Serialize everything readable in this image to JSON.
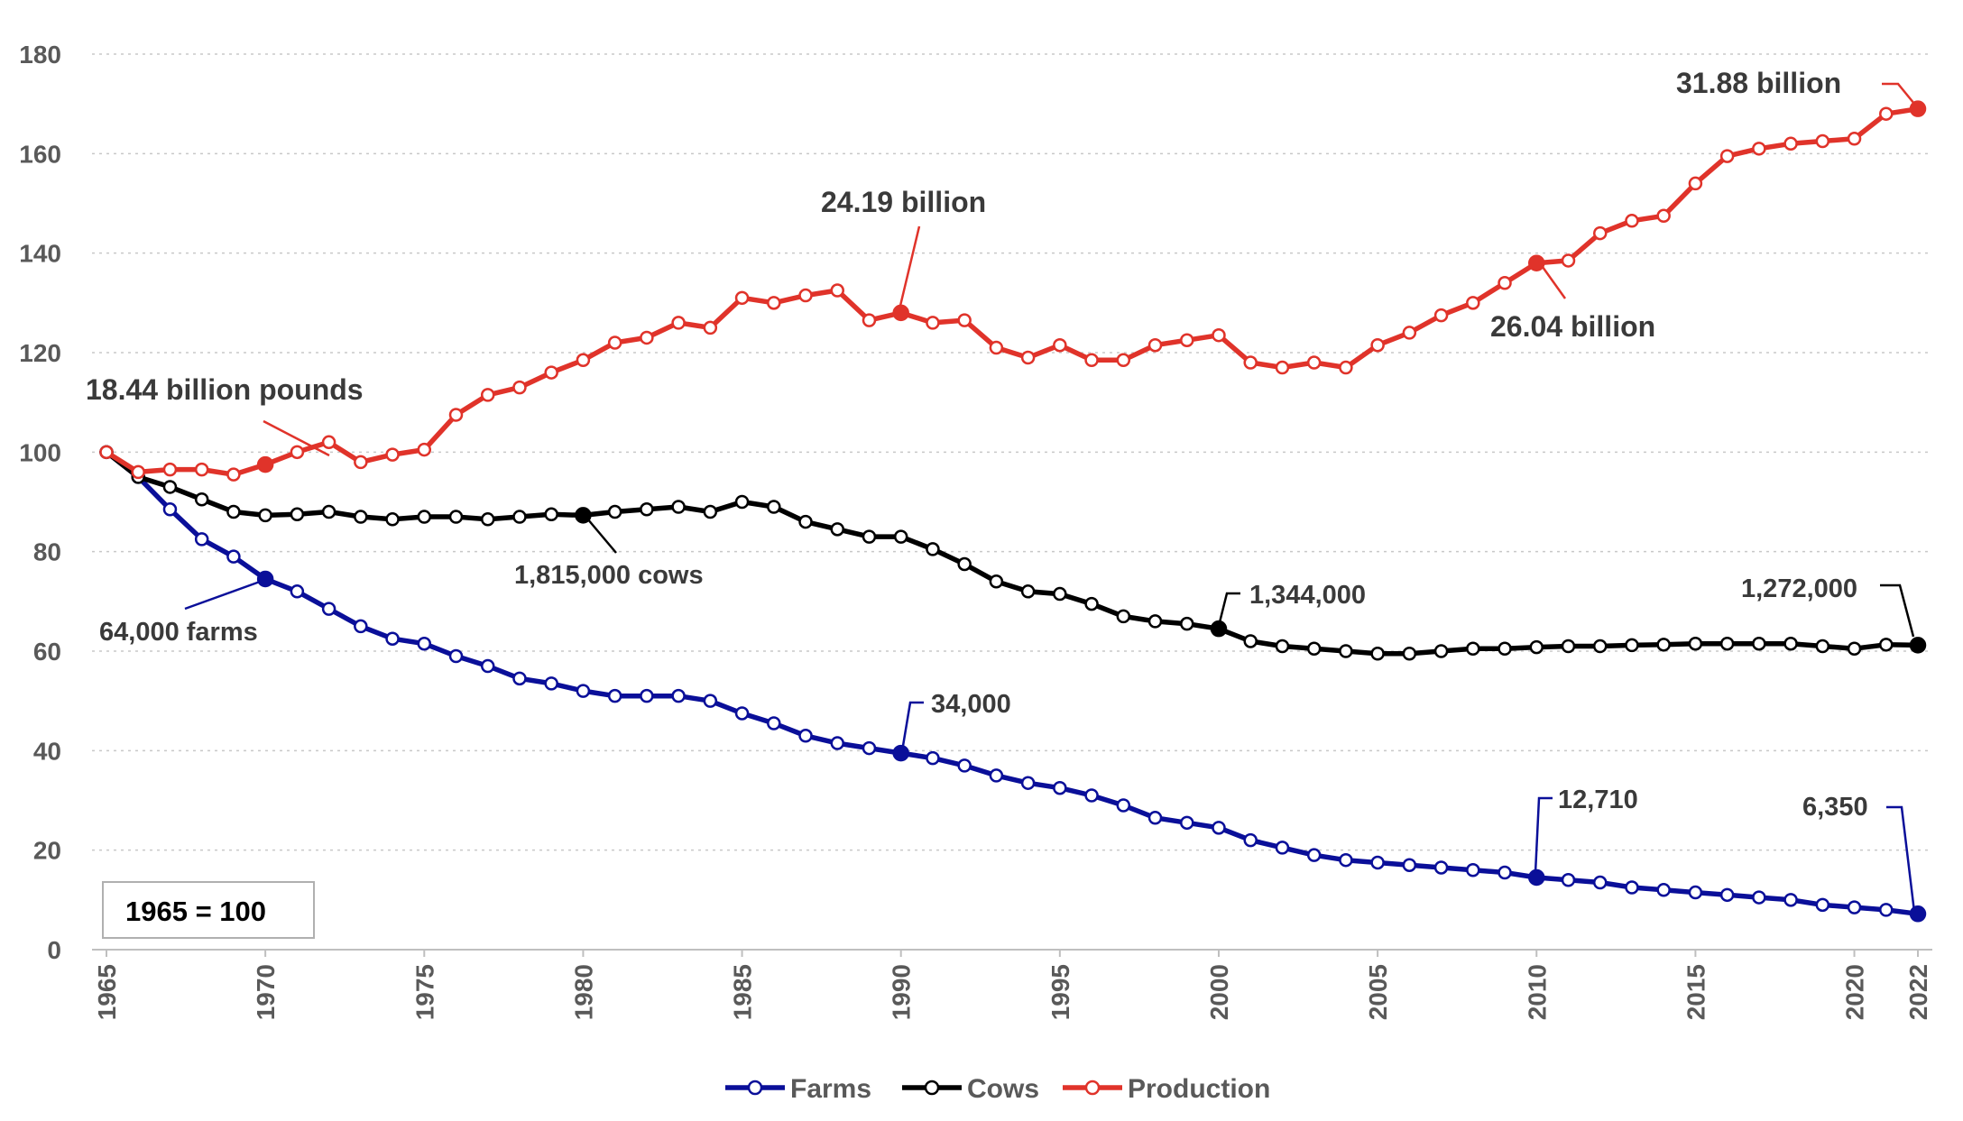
{
  "chart_data": {
    "type": "line",
    "title": "",
    "xlabel": "",
    "ylabel": "",
    "ylim": [
      0,
      180
    ],
    "yticks": [
      0,
      20,
      40,
      60,
      80,
      100,
      120,
      140,
      160,
      180
    ],
    "xlim": [
      1965,
      2022
    ],
    "xticks": [
      1965,
      1970,
      1975,
      1980,
      1985,
      1990,
      1995,
      2000,
      2005,
      2010,
      2015,
      2020,
      2022
    ],
    "grid": true,
    "legend_position": "bottom-center",
    "index_note": "1965 = 100",
    "x": [
      1965,
      1966,
      1967,
      1968,
      1969,
      1970,
      1971,
      1972,
      1973,
      1974,
      1975,
      1976,
      1977,
      1978,
      1979,
      1980,
      1981,
      1982,
      1983,
      1984,
      1985,
      1986,
      1987,
      1988,
      1989,
      1990,
      1991,
      1992,
      1993,
      1994,
      1995,
      1996,
      1997,
      1998,
      1999,
      2000,
      2001,
      2002,
      2003,
      2004,
      2005,
      2006,
      2007,
      2008,
      2009,
      2010,
      2011,
      2012,
      2013,
      2014,
      2015,
      2016,
      2017,
      2018,
      2019,
      2020,
      2021,
      2022
    ],
    "series": [
      {
        "name": "Farms",
        "color": "#0a0f99",
        "values": [
          100,
          95,
          88.5,
          82.5,
          79,
          74.5,
          72,
          68.5,
          65,
          62.5,
          61.5,
          59,
          57,
          54.5,
          53.5,
          52,
          51,
          51,
          51,
          50,
          47.5,
          45.5,
          43,
          41.5,
          40.5,
          39.5,
          38.5,
          37,
          35,
          33.5,
          32.5,
          31,
          29,
          26.5,
          25.5,
          24.5,
          22,
          20.5,
          19,
          18,
          17.5,
          17,
          16.5,
          16,
          15.5,
          14.5,
          14,
          13.5,
          12.5,
          12,
          11.5,
          11,
          10.5,
          10,
          9,
          8.5,
          8,
          7.2
        ]
      },
      {
        "name": "Cows",
        "color": "#000000",
        "values": [
          100,
          95,
          93,
          90.5,
          88,
          87.3,
          87.5,
          88,
          87,
          86.5,
          87,
          87,
          86.5,
          87,
          87.5,
          87.3,
          88,
          88.5,
          89,
          88,
          90,
          89,
          86,
          84.5,
          83,
          83,
          80.5,
          77.5,
          74,
          72,
          71.5,
          69.5,
          67,
          66,
          65.5,
          64.5,
          62,
          61,
          60.5,
          60,
          59.5,
          59.5,
          60,
          60.5,
          60.5,
          60.8,
          61,
          61,
          61.2,
          61.3,
          61.5,
          61.5,
          61.5,
          61.5,
          61,
          60.5,
          61.3,
          61.2
        ]
      },
      {
        "name": "Production",
        "color": "#e0332a",
        "values": [
          100,
          96,
          96.5,
          96.5,
          95.5,
          97.5,
          100,
          102,
          98,
          99.5,
          100.5,
          107.5,
          111.5,
          113,
          116,
          118.5,
          122,
          123,
          126,
          125,
          131,
          130,
          131.5,
          132.5,
          126.5,
          128,
          126,
          126.5,
          121,
          119,
          121.5,
          118.5,
          118.5,
          121.5,
          122.5,
          123.5,
          118,
          117,
          118,
          117,
          121.5,
          124,
          127.5,
          130,
          134,
          138,
          138.5,
          144,
          146.5,
          147.5,
          154,
          159.5,
          161,
          162,
          162.5,
          163,
          168,
          169
        ]
      }
    ],
    "highlights": {
      "Farms": [
        1970,
        1990,
        2010,
        2022
      ],
      "Cows": [
        1980,
        2000,
        2022
      ],
      "Production": [
        1970,
        1990,
        2010,
        2022
      ]
    },
    "annotations": [
      {
        "text": "18.44 billion pounds",
        "series": "Production",
        "year": 1970
      },
      {
        "text": "24.19 billion",
        "series": "Production",
        "year": 1990
      },
      {
        "text": "26.04 billion",
        "series": "Production",
        "year": 2010
      },
      {
        "text": "31.88 billion",
        "series": "Production",
        "year": 2022
      },
      {
        "text": "1,815,000 cows",
        "series": "Cows",
        "year": 1980
      },
      {
        "text": "1,344,000",
        "series": "Cows",
        "year": 2000
      },
      {
        "text": "1,272,000",
        "series": "Cows",
        "year": 2022
      },
      {
        "text": "64,000 farms",
        "series": "Farms",
        "year": 1970
      },
      {
        "text": "34,000",
        "series": "Farms",
        "year": 1990
      },
      {
        "text": "12,710",
        "series": "Farms",
        "year": 2010
      },
      {
        "text": "6,350",
        "series": "Farms",
        "year": 2022
      }
    ]
  }
}
